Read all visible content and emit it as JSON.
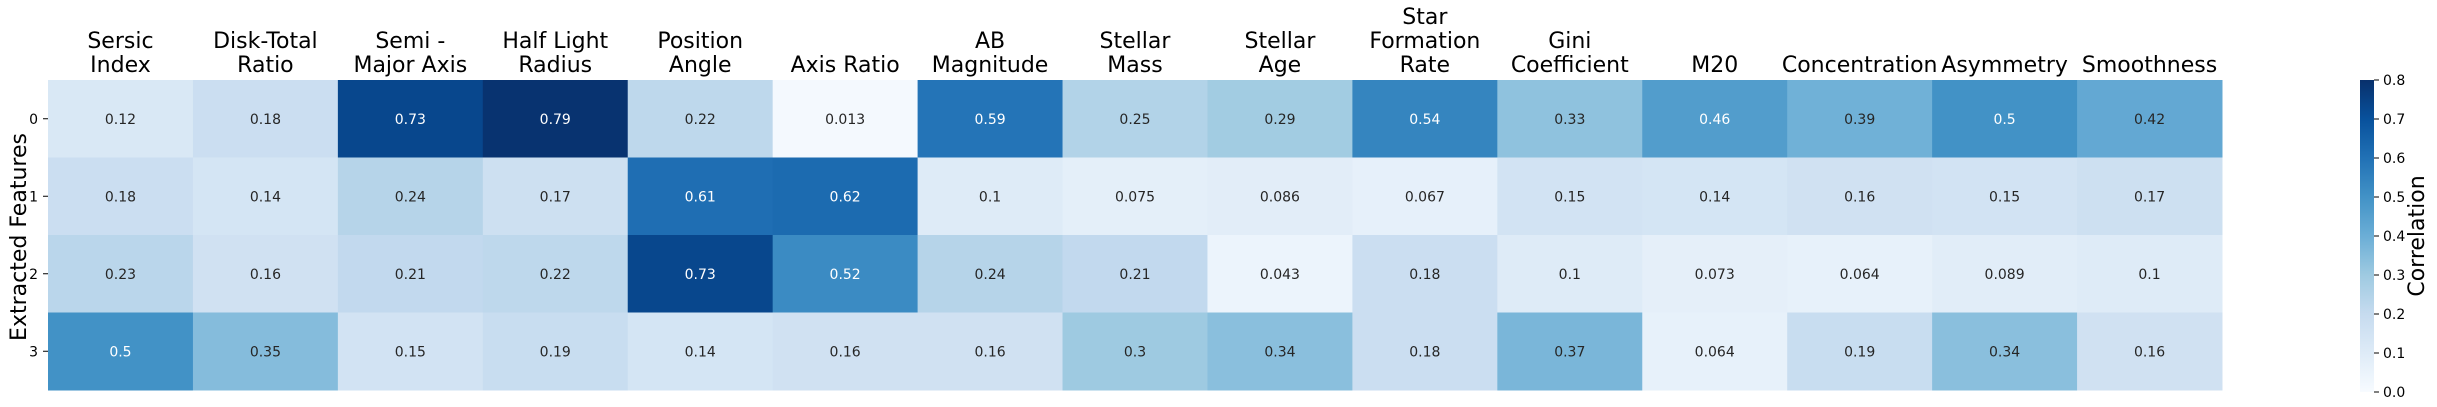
{
  "chart_data": {
    "type": "heatmap",
    "columns": [
      [
        "Sersic",
        "Index"
      ],
      [
        "Disk-Total",
        "Ratio"
      ],
      [
        "Semi -",
        "Major Axis"
      ],
      [
        "Half Light",
        "Radius"
      ],
      [
        "Position",
        "Angle"
      ],
      [
        "Axis Ratio"
      ],
      [
        "AB",
        "Magnitude"
      ],
      [
        "Stellar",
        "Mass"
      ],
      [
        "Stellar",
        "Age"
      ],
      [
        "Star",
        "Formation",
        "Rate"
      ],
      [
        "Gini",
        "Coefficient"
      ],
      [
        "M20"
      ],
      [
        "Concentration"
      ],
      [
        "Asymmetry"
      ],
      [
        "Smoothness"
      ]
    ],
    "rows": [
      "0",
      "1",
      "2",
      "3"
    ],
    "values": [
      [
        0.12,
        0.18,
        0.73,
        0.79,
        0.22,
        0.013,
        0.59,
        0.25,
        0.29,
        0.54,
        0.33,
        0.46,
        0.39,
        0.5,
        0.42
      ],
      [
        0.18,
        0.14,
        0.24,
        0.17,
        0.61,
        0.62,
        0.1,
        0.075,
        0.086,
        0.067,
        0.15,
        0.14,
        0.16,
        0.15,
        0.17
      ],
      [
        0.23,
        0.16,
        0.21,
        0.22,
        0.73,
        0.52,
        0.24,
        0.21,
        0.043,
        0.18,
        0.1,
        0.073,
        0.064,
        0.089,
        0.1
      ],
      [
        0.5,
        0.35,
        0.15,
        0.19,
        0.14,
        0.16,
        0.16,
        0.3,
        0.34,
        0.18,
        0.37,
        0.064,
        0.19,
        0.34,
        0.16
      ]
    ],
    "ylabel": "Extracted Features",
    "colorbar_label": "Correlation",
    "colorbar_range": [
      0.0,
      0.8
    ],
    "colorbar_ticks": [
      "0.0",
      "0.1",
      "0.2",
      "0.3",
      "0.4",
      "0.5",
      "0.6",
      "0.7",
      "0.8"
    ],
    "colormap": "Blues",
    "colormap_stops": [
      "#f7fbff",
      "#deebf7",
      "#c6dbef",
      "#9ecae1",
      "#6baed6",
      "#4292c6",
      "#2171b5",
      "#08519c",
      "#08306b"
    ]
  }
}
